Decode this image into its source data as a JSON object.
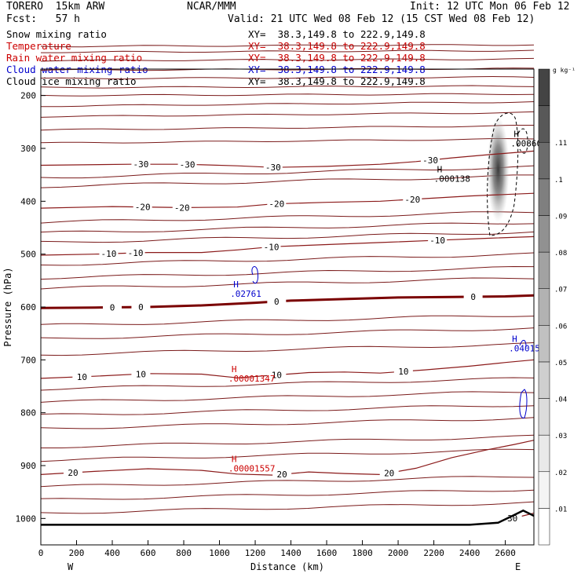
{
  "header": {
    "model": "TORERO  15km ARW",
    "source": "NCAR/MMM",
    "init": "Init: 12 UTC Mon 06 Feb 12",
    "fcst": "Fcst:   57 h",
    "valid": "Valid: 21 UTC Wed 08 Feb 12 (15 CST Wed 08 Feb 12)"
  },
  "legend": [
    {
      "label": "Snow mixing ratio",
      "xy": "XY=  38.3,149.8 to 222.9,149.8",
      "color": "#000000"
    },
    {
      "label": "Temperature",
      "xy": "XY=  38.3,149.8 to 222.9,149.8",
      "color": "#cc0000"
    },
    {
      "label": "Rain water mixing ratio",
      "xy": "XY=  38.3,149.8 to 222.9,149.8",
      "color": "#cc0000"
    },
    {
      "label": "Cloud water mixing ratio",
      "xy": "XY=  38.3,149.8 to 222.9,149.8",
      "color": "#0000cc"
    },
    {
      "label": "Cloud ice mixing ratio",
      "xy": "XY=  38.3,149.8 to 222.9,149.8",
      "color": "#000000"
    }
  ],
  "chart_data": {
    "type": "contour",
    "xlabel": "Distance (km)",
    "ylabel": "Pressure (hPa)",
    "xlim": [
      0,
      2760
    ],
    "ylim": [
      1050,
      150
    ],
    "xticks": [
      0,
      200,
      400,
      600,
      800,
      1000,
      1200,
      1400,
      1600,
      1800,
      2000,
      2200,
      2400,
      2600
    ],
    "yticks": [
      200,
      300,
      400,
      500,
      600,
      700,
      800,
      900,
      1000
    ],
    "x_end_labels": {
      "left": "W",
      "right": "E"
    },
    "colorbar": {
      "unit": "g kg⁻¹",
      "ticks": [
        ".01",
        ".02",
        ".03",
        ".04",
        ".05",
        ".06",
        ".07",
        ".08",
        ".09",
        ".1",
        ".11"
      ],
      "colors": [
        "#ffffff",
        "#f4f4f4",
        "#e9e9e9",
        "#dcdcdc",
        "#cfcfcf",
        "#c1c1c1",
        "#b2b2b2",
        "#a2a2a2",
        "#919191",
        "#7f7f7f",
        "#6c6c6c",
        "#585858",
        "#444444"
      ]
    },
    "temperature_isotherms": [
      {
        "value": -30,
        "labels": [
          {
            "text": "-30",
            "x": 560
          },
          {
            "text": "-30",
            "x": 820
          },
          {
            "text": "-30",
            "x": 1300
          },
          {
            "text": "-30",
            "x": 2180
          }
        ],
        "points": [
          [
            0,
            332
          ],
          [
            500,
            330
          ],
          [
            800,
            330
          ],
          [
            1100,
            333
          ],
          [
            1300,
            336
          ],
          [
            1600,
            334
          ],
          [
            1900,
            330
          ],
          [
            2100,
            325
          ],
          [
            2300,
            318
          ],
          [
            2500,
            312
          ],
          [
            2760,
            305
          ]
        ]
      },
      {
        "value": -20,
        "labels": [
          {
            "text": "-20",
            "x": 570
          },
          {
            "text": "-20",
            "x": 790
          },
          {
            "text": "-20",
            "x": 1320
          },
          {
            "text": "-20",
            "x": 2080
          }
        ],
        "points": [
          [
            0,
            413
          ],
          [
            400,
            410
          ],
          [
            800,
            412
          ],
          [
            1100,
            411
          ],
          [
            1300,
            405
          ],
          [
            1600,
            402
          ],
          [
            1900,
            400
          ],
          [
            2100,
            396
          ],
          [
            2400,
            390
          ],
          [
            2760,
            385
          ]
        ]
      },
      {
        "value": -10,
        "labels": [
          {
            "text": "-10",
            "x": 380
          },
          {
            "text": "-10",
            "x": 530
          },
          {
            "text": "-10",
            "x": 1290
          },
          {
            "text": "-10",
            "x": 2220
          }
        ],
        "points": [
          [
            0,
            502
          ],
          [
            300,
            500
          ],
          [
            600,
            497
          ],
          [
            900,
            497
          ],
          [
            1100,
            492
          ],
          [
            1300,
            486
          ],
          [
            1600,
            482
          ],
          [
            1900,
            478
          ],
          [
            2200,
            474
          ],
          [
            2500,
            470
          ],
          [
            2760,
            467
          ]
        ]
      },
      {
        "value": 0,
        "bold": true,
        "labels": [
          {
            "text": "0",
            "x": 400
          },
          {
            "text": "0",
            "x": 560
          },
          {
            "text": "0",
            "x": 1320
          },
          {
            "text": "0",
            "x": 2420
          }
        ],
        "points": [
          [
            0,
            602
          ],
          [
            300,
            601
          ],
          [
            600,
            600
          ],
          [
            900,
            597
          ],
          [
            1200,
            592
          ],
          [
            1400,
            588
          ],
          [
            1700,
            585
          ],
          [
            2000,
            582
          ],
          [
            2300,
            581
          ],
          [
            2600,
            580
          ],
          [
            2760,
            578
          ]
        ]
      },
      {
        "value": 10,
        "labels": [
          {
            "text": "10",
            "x": 230
          },
          {
            "text": "10",
            "x": 560
          },
          {
            "text": "10",
            "x": 1320
          },
          {
            "text": "10",
            "x": 2030
          }
        ],
        "points": [
          [
            0,
            735
          ],
          [
            300,
            731
          ],
          [
            600,
            726
          ],
          [
            900,
            727
          ],
          [
            1100,
            734
          ],
          [
            1300,
            729
          ],
          [
            1500,
            724
          ],
          [
            1700,
            723
          ],
          [
            1900,
            725
          ],
          [
            2150,
            719
          ],
          [
            2400,
            712
          ],
          [
            2600,
            705
          ],
          [
            2760,
            700
          ]
        ]
      },
      {
        "value": 20,
        "labels": [
          {
            "text": "20",
            "x": 180
          },
          {
            "text": "20",
            "x": 1350
          },
          {
            "text": "20",
            "x": 1950
          }
        ],
        "points": [
          [
            0,
            917
          ],
          [
            300,
            911
          ],
          [
            600,
            906
          ],
          [
            900,
            909
          ],
          [
            1100,
            916
          ],
          [
            1300,
            918
          ],
          [
            1500,
            912
          ],
          [
            1700,
            915
          ],
          [
            1900,
            917
          ],
          [
            2100,
            905
          ],
          [
            2300,
            885
          ],
          [
            2500,
            870
          ],
          [
            2650,
            860
          ],
          [
            2760,
            852
          ]
        ]
      },
      {
        "value": 30,
        "labels": [
          {
            "text": "30",
            "x": 2640
          }
        ],
        "points": [
          [
            2600,
            1003
          ],
          [
            2700,
            995
          ],
          [
            2760,
            990
          ]
        ]
      }
    ],
    "extrema_labels": [
      {
        "symbol": "H",
        "value": ".00860",
        "x": 2630,
        "p": 290,
        "series": "Snow mixing ratio"
      },
      {
        "symbol": "H",
        "value": ".000138",
        "x": 2200,
        "p": 357,
        "series": "Cloud ice mixing ratio"
      },
      {
        "symbol": "H",
        "value": ".02761",
        "x": 1060,
        "p": 575,
        "series": "Cloud water mixing ratio"
      },
      {
        "symbol": "H",
        "value": ".04015",
        "x": 2620,
        "p": 678,
        "series": "Cloud water mixing ratio"
      },
      {
        "symbol": "H",
        "value": ".00001347",
        "x": 1050,
        "p": 735,
        "series": "Rain water mixing ratio"
      },
      {
        "symbol": "H",
        "value": ".00001557",
        "x": 1050,
        "p": 905,
        "series": "Rain water mixing ratio"
      }
    ],
    "snow_shading": {
      "x": 2560,
      "p_top": 240,
      "p_bottom": 440,
      "max": 0.12
    }
  }
}
